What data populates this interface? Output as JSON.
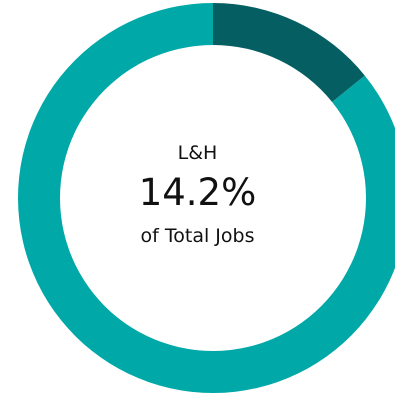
{
  "chart_data": {
    "type": "pie",
    "variant": "donut",
    "slices": [
      {
        "label": "L&H",
        "value": 14.2,
        "color": "#045e62"
      },
      {
        "label": "",
        "value": 85.8,
        "color": "#00a8a8"
      }
    ],
    "center_text": {
      "top": "L&H",
      "value": "14.2%",
      "bottom": "of Total Jobs"
    }
  }
}
